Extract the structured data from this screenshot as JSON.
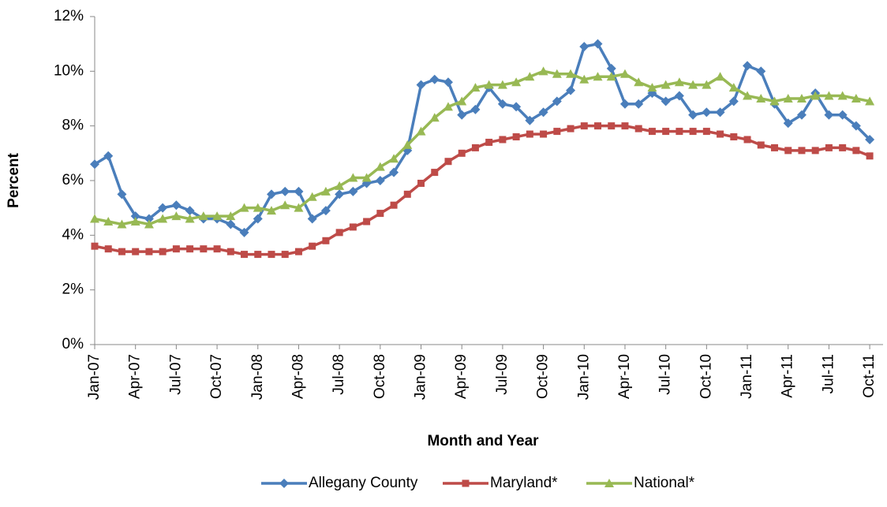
{
  "chart_data": {
    "type": "line",
    "x_label": "Month and Year",
    "y_label": "Percent",
    "categories": [
      "Jan-07",
      null,
      null,
      "Apr-07",
      null,
      null,
      "Jul-07",
      null,
      null,
      "Oct-07",
      null,
      null,
      "Jan-08",
      null,
      null,
      "Apr-08",
      null,
      null,
      "Jul-08",
      null,
      null,
      "Oct-08",
      null,
      null,
      "Jan-09",
      null,
      null,
      "Apr-09",
      null,
      null,
      "Jul-09",
      null,
      null,
      "Oct-09",
      null,
      null,
      "Jan-10",
      null,
      null,
      "Apr-10",
      null,
      null,
      "Jul-10",
      null,
      null,
      "Oct-10",
      null,
      null,
      "Jan-11",
      null,
      null,
      "Apr-11",
      null,
      null,
      "Jul-11",
      null,
      null,
      "Oct-11"
    ],
    "series": [
      {
        "name": "Allegany County",
        "color": "#4a7ebb",
        "marker": "diamond",
        "values": [
          6.6,
          6.9,
          5.5,
          4.7,
          4.6,
          5.0,
          5.1,
          4.9,
          4.6,
          4.6,
          4.4,
          4.1,
          4.6,
          5.5,
          5.6,
          5.6,
          4.6,
          4.9,
          5.5,
          5.6,
          5.9,
          6.0,
          6.3,
          7.1,
          9.5,
          9.7,
          9.6,
          8.4,
          8.6,
          9.4,
          8.8,
          8.7,
          8.2,
          8.5,
          8.9,
          9.3,
          10.9,
          11.0,
          10.1,
          8.8,
          8.8,
          9.2,
          8.9,
          9.1,
          8.4,
          8.5,
          8.5,
          8.9,
          10.2,
          10.0,
          8.8,
          8.1,
          8.4,
          9.2,
          8.4,
          8.4,
          8.0,
          7.5
        ]
      },
      {
        "name": "Maryland*",
        "color": "#be4b48",
        "marker": "square",
        "values": [
          3.6,
          3.5,
          3.4,
          3.4,
          3.4,
          3.4,
          3.5,
          3.5,
          3.5,
          3.5,
          3.4,
          3.3,
          3.3,
          3.3,
          3.3,
          3.4,
          3.6,
          3.8,
          4.1,
          4.3,
          4.5,
          4.8,
          5.1,
          5.5,
          5.9,
          6.3,
          6.7,
          7.0,
          7.2,
          7.4,
          7.5,
          7.6,
          7.7,
          7.7,
          7.8,
          7.9,
          8.0,
          8.0,
          8.0,
          8.0,
          7.9,
          7.8,
          7.8,
          7.8,
          7.8,
          7.8,
          7.7,
          7.6,
          7.5,
          7.3,
          7.2,
          7.1,
          7.1,
          7.1,
          7.2,
          7.2,
          7.1,
          6.9
        ]
      },
      {
        "name": "National*",
        "color": "#98b954",
        "marker": "triangle",
        "values": [
          4.6,
          4.5,
          4.4,
          4.5,
          4.4,
          4.6,
          4.7,
          4.6,
          4.7,
          4.7,
          4.7,
          5.0,
          5.0,
          4.9,
          5.1,
          5.0,
          5.4,
          5.6,
          5.8,
          6.1,
          6.1,
          6.5,
          6.8,
          7.3,
          7.8,
          8.3,
          8.7,
          8.9,
          9.4,
          9.5,
          9.5,
          9.6,
          9.8,
          10.0,
          9.9,
          9.9,
          9.7,
          9.8,
          9.8,
          9.9,
          9.6,
          9.4,
          9.5,
          9.6,
          9.5,
          9.5,
          9.8,
          9.4,
          9.1,
          9.0,
          8.9,
          9.0,
          9.0,
          9.1,
          9.1,
          9.1,
          9.0,
          8.9
        ]
      }
    ],
    "ylim": [
      0,
      12
    ],
    "yticks": [
      {
        "value": 0,
        "label": "0%"
      },
      {
        "value": 2,
        "label": "2%"
      },
      {
        "value": 4,
        "label": "4%"
      },
      {
        "value": 6,
        "label": "6%"
      },
      {
        "value": 8,
        "label": "8%"
      },
      {
        "value": 10,
        "label": "10%"
      },
      {
        "value": 12,
        "label": "12%"
      }
    ],
    "grid": false,
    "legend": "bottom"
  }
}
